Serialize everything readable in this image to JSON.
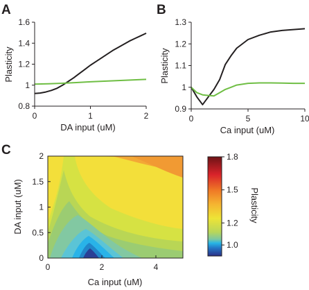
{
  "chart_data": [
    {
      "panel_label": "A",
      "type": "line",
      "xlabel": "DA input (uM)",
      "ylabel": "Plasticity",
      "xlim": [
        0,
        2
      ],
      "ylim": [
        0.8,
        1.6
      ],
      "xticks": [
        "0",
        "1",
        "2"
      ],
      "yticks": [
        "0.8",
        "1",
        "1.2",
        "1.4",
        "1.6"
      ],
      "series": [
        {
          "color": "#231f20",
          "x": [
            0,
            0.1,
            0.2,
            0.3,
            0.4,
            0.5,
            0.6,
            0.7,
            0.8,
            0.9,
            1.0,
            1.1,
            1.2,
            1.3,
            1.4,
            1.5,
            1.6,
            1.7,
            1.8,
            1.9,
            2.0
          ],
          "y": [
            0.92,
            0.925,
            0.935,
            0.95,
            0.97,
            1.0,
            1.035,
            1.07,
            1.11,
            1.15,
            1.19,
            1.225,
            1.26,
            1.295,
            1.33,
            1.36,
            1.39,
            1.42,
            1.445,
            1.47,
            1.495
          ]
        },
        {
          "color": "#6fbe44",
          "x": [
            0,
            0.25,
            0.5,
            0.75,
            1.0,
            1.25,
            1.5,
            1.75,
            2.0
          ],
          "y": [
            1.01,
            1.013,
            1.018,
            1.025,
            1.032,
            1.038,
            1.044,
            1.05,
            1.055
          ]
        }
      ]
    },
    {
      "panel_label": "B",
      "type": "line",
      "xlabel": "Ca input (uM)",
      "ylabel": "Plasticity",
      "xlim": [
        0,
        10
      ],
      "ylim": [
        0.9,
        1.3
      ],
      "xticks": [
        "0",
        "5",
        "10"
      ],
      "yticks": [
        "0.9",
        "1",
        "1.1",
        "1.2",
        "1.3"
      ],
      "series": [
        {
          "color": "#231f20",
          "x": [
            0,
            0.5,
            1,
            1.5,
            2,
            2.5,
            3,
            3.5,
            4,
            5,
            6,
            7,
            8,
            9,
            10
          ],
          "y": [
            1.0,
            0.955,
            0.92,
            0.955,
            0.99,
            1.035,
            1.105,
            1.145,
            1.18,
            1.22,
            1.24,
            1.255,
            1.262,
            1.266,
            1.27
          ]
        },
        {
          "color": "#6fbe44",
          "x": [
            0,
            0.5,
            1,
            1.5,
            2,
            2.5,
            3,
            3.5,
            4,
            5,
            6,
            7,
            8,
            9,
            10
          ],
          "y": [
            1.0,
            0.975,
            0.965,
            0.962,
            0.96,
            0.975,
            0.99,
            1.0,
            1.01,
            1.018,
            1.02,
            1.02,
            1.019,
            1.018,
            1.018
          ]
        }
      ]
    },
    {
      "panel_label": "C",
      "type": "heatmap",
      "xlabel": "Ca input (uM)",
      "ylabel": "DA input (uM)",
      "xlim": [
        0,
        5
      ],
      "ylim": [
        0,
        2
      ],
      "xticks": [
        "0",
        "2",
        "4"
      ],
      "yticks": [
        "0",
        "0.5",
        "1",
        "1.5",
        "2"
      ],
      "colorbar": {
        "label": "Plasticity",
        "min": 0.9,
        "max": 1.8,
        "ticks": [
          "1.0",
          "1.2",
          "1.5",
          "1.8"
        ],
        "colormap": "jet"
      }
    }
  ]
}
